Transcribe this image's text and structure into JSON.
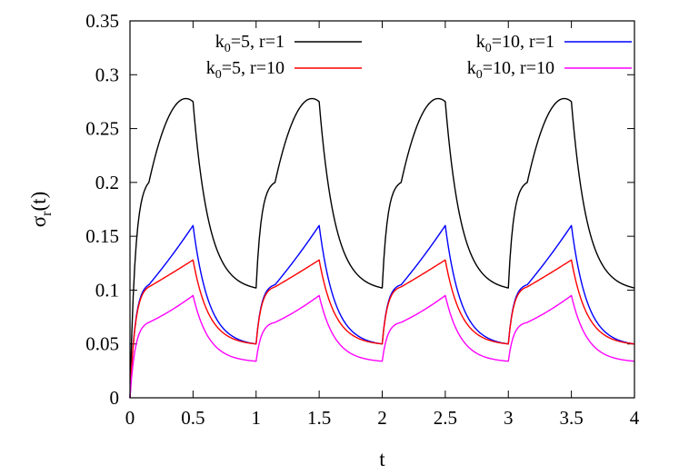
{
  "chart_data": {
    "type": "line",
    "xlabel": "t",
    "ylabel": {
      "main": "σ",
      "sub": "r",
      "tail": "(t)"
    },
    "xlim": [
      0,
      4
    ],
    "ylim": [
      0,
      0.35
    ],
    "xticks": [
      "0",
      "0.5",
      "1",
      "1.5",
      "2",
      "2.5",
      "3",
      "3.5",
      "4"
    ],
    "yticks": [
      "0",
      "0.05",
      "0.1",
      "0.15",
      "0.2",
      "0.25",
      "0.3",
      "0.35"
    ],
    "legend_position": "top",
    "period": 1,
    "series": [
      {
        "name": {
          "k": "k",
          "sub": "0",
          "rest": "=5, r=1"
        },
        "color": "#000000",
        "values": [
          0.0,
          0.2,
          0.27,
          0.275,
          0.102,
          0.2,
          0.27,
          0.275,
          0.102,
          0.2,
          0.27,
          0.275,
          0.102,
          0.2,
          0.27,
          0.275,
          0.102
        ]
      },
      {
        "name": {
          "k": "k",
          "sub": "0",
          "rest": "=10, r=1"
        },
        "color": "#0000ff",
        "values": [
          0.0,
          0.105,
          0.135,
          0.16,
          0.05,
          0.105,
          0.135,
          0.16,
          0.05,
          0.105,
          0.135,
          0.16,
          0.05,
          0.105,
          0.135,
          0.16,
          0.05
        ]
      },
      {
        "name": {
          "k": "k",
          "sub": "0",
          "rest": "=5, r=10"
        },
        "color": "#ff0000",
        "values": [
          0.0,
          0.103,
          0.117,
          0.128,
          0.05,
          0.103,
          0.117,
          0.128,
          0.05,
          0.103,
          0.117,
          0.128,
          0.05,
          0.103,
          0.117,
          0.128,
          0.05
        ]
      },
      {
        "name": {
          "k": "k",
          "sub": "0",
          "rest": "=10, r=10"
        },
        "color": "#ff00ff",
        "values": [
          0.0,
          0.07,
          0.083,
          0.095,
          0.034,
          0.07,
          0.083,
          0.095,
          0.034,
          0.07,
          0.083,
          0.095,
          0.034,
          0.07,
          0.083,
          0.095,
          0.034
        ]
      }
    ],
    "x": [
      0,
      0.15,
      0.35,
      0.5,
      1.0,
      1.15,
      1.35,
      1.5,
      2.0,
      2.15,
      2.35,
      2.5,
      3.0,
      3.15,
      3.35,
      3.5,
      4.0
    ]
  }
}
